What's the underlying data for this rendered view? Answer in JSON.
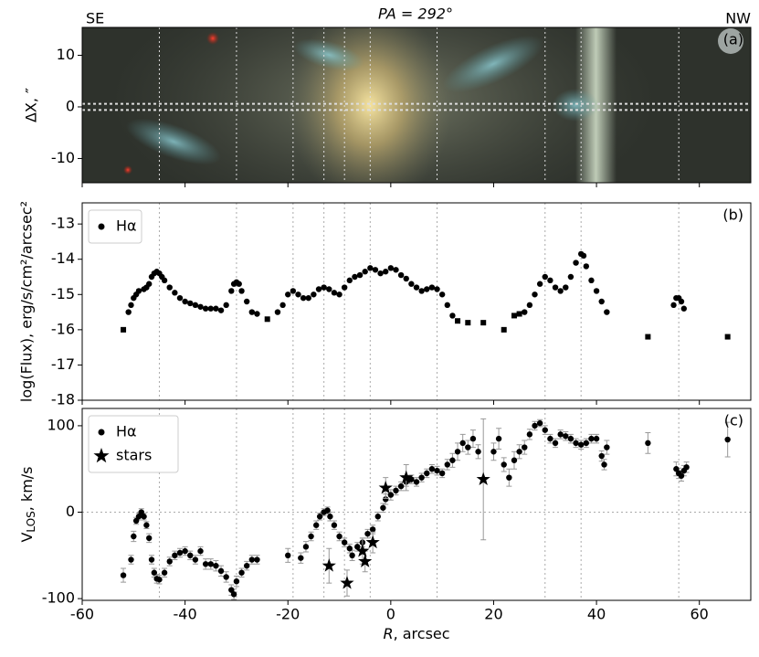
{
  "chart_data": [
    {
      "type": "image",
      "title": "PA = 292°",
      "label_left": "SE",
      "label_right": "NW",
      "panel_label": "(a)",
      "ylabel": "ΔX, ″",
      "ylim": [
        -14.7,
        15.4
      ],
      "yticks": [
        -10,
        0,
        10
      ],
      "hlines": [
        -0.6,
        0.6
      ],
      "vlines": [
        -45,
        -30,
        -19,
        -13,
        -9,
        -4,
        9,
        30,
        37,
        56
      ]
    },
    {
      "type": "scatter",
      "panel_label": "(b)",
      "ylabel": "log(Flux),  erg/s/cm²/arcsec²",
      "ylim": [
        -18,
        -12.4
      ],
      "yticks": [
        -18,
        -17,
        -16,
        -15,
        -14,
        -13
      ],
      "legend": "upper left",
      "series": [
        {
          "name": "Hα",
          "marker": "circle",
          "color": "#000000",
          "x": [
            -51,
            -50.5,
            -50,
            -49.5,
            -49,
            -48,
            -47.5,
            -47,
            -46.5,
            -46,
            -45.5,
            -45,
            -44.5,
            -44,
            -43,
            -42,
            -41,
            -40,
            -39,
            -38,
            -37,
            -36,
            -35,
            -34,
            -33,
            -32,
            -31,
            -30.5,
            -30,
            -29.5,
            -29,
            -28,
            -27,
            -26,
            -22,
            -21,
            -20,
            -19,
            -18,
            -17,
            -16,
            -15,
            -14,
            -13,
            -12,
            -11,
            -10,
            -9,
            -8,
            -7,
            -6,
            -5,
            -4,
            -3,
            -2,
            -1,
            0,
            1,
            2,
            3,
            4,
            5,
            6,
            7,
            8,
            9,
            10,
            11,
            12,
            26,
            27,
            28,
            29,
            30,
            31,
            32,
            33,
            34,
            35,
            36,
            37,
            37.5,
            38,
            39,
            40,
            41,
            42,
            55,
            55.5,
            56,
            56.5,
            57
          ],
          "values": [
            -15.5,
            -15.3,
            -15.1,
            -15.0,
            -14.9,
            -14.85,
            -14.8,
            -14.7,
            -14.5,
            -14.4,
            -14.35,
            -14.4,
            -14.5,
            -14.6,
            -14.8,
            -14.95,
            -15.1,
            -15.2,
            -15.25,
            -15.3,
            -15.35,
            -15.4,
            -15.4,
            -15.4,
            -15.45,
            -15.3,
            -14.9,
            -14.7,
            -14.65,
            -14.7,
            -14.9,
            -15.2,
            -15.5,
            -15.55,
            -15.5,
            -15.3,
            -15.0,
            -14.9,
            -15.0,
            -15.1,
            -15.1,
            -15.0,
            -14.85,
            -14.8,
            -14.85,
            -14.95,
            -15.0,
            -14.8,
            -14.6,
            -14.5,
            -14.45,
            -14.35,
            -14.25,
            -14.3,
            -14.4,
            -14.35,
            -14.25,
            -14.3,
            -14.45,
            -14.55,
            -14.7,
            -14.8,
            -14.9,
            -14.85,
            -14.8,
            -14.85,
            -15.0,
            -15.3,
            -15.6,
            -15.5,
            -15.3,
            -15.0,
            -14.7,
            -14.5,
            -14.6,
            -14.8,
            -14.9,
            -14.8,
            -14.5,
            -14.1,
            -13.85,
            -13.9,
            -14.2,
            -14.6,
            -14.9,
            -15.2,
            -15.5,
            -15.3,
            -15.1,
            -15.1,
            -15.2,
            -15.4
          ]
        },
        {
          "marker": "square",
          "color": "#000000",
          "x": [
            -52,
            -24,
            13,
            15,
            18,
            22,
            24,
            25,
            50,
            65.5
          ],
          "values": [
            -16.0,
            -15.7,
            -15.75,
            -15.8,
            -15.8,
            -16.0,
            -15.6,
            -15.55,
            -16.2,
            -16.2
          ]
        }
      ]
    },
    {
      "type": "scatter",
      "panel_label": "(c)",
      "ylabel": "V",
      "ylabel_sub": "LOS",
      "ylabel_unit": ", km/s",
      "xlabel": "R",
      "xlabel_unit": ", arcsec",
      "xlim": [
        -60,
        70
      ],
      "xticks": [
        -60,
        -40,
        -20,
        0,
        20,
        40,
        60
      ],
      "ylim": [
        -102,
        120
      ],
      "yticks": [
        -100,
        0,
        100
      ],
      "hlines": [
        0
      ],
      "legend": "upper left",
      "series": [
        {
          "name": "Hα",
          "marker": "circle",
          "color": "#000000",
          "x": [
            -52,
            -50.5,
            -50,
            -49.5,
            -49,
            -48.5,
            -48,
            -47.5,
            -47,
            -46.5,
            -46,
            -45.5,
            -45,
            -44,
            -43,
            -42,
            -41,
            -40,
            -39,
            -38,
            -37,
            -36,
            -35,
            -34,
            -33,
            -32,
            -31,
            -30.5,
            -30,
            -29,
            -28,
            -27,
            -26,
            -20,
            -17.5,
            -16.5,
            -15.5,
            -14.5,
            -13.8,
            -13,
            -12.3,
            -11.8,
            -11,
            -10,
            -9,
            -8,
            -7.5,
            -6.5,
            -5.5,
            -4.5,
            -3.5,
            -2.5,
            -1.5,
            -1,
            0,
            1,
            2,
            3,
            4,
            5,
            6,
            7,
            8,
            9,
            10,
            11,
            12,
            13,
            14,
            15,
            16,
            17,
            20,
            21,
            22,
            23,
            24,
            25,
            26,
            27,
            28,
            29,
            30,
            31,
            32,
            33,
            34,
            35,
            36,
            37,
            38,
            39,
            40,
            41,
            41.5,
            42,
            50,
            55.5,
            56,
            56.5,
            57,
            57.5,
            65.5
          ],
          "values": [
            -73,
            -55,
            -28,
            -10,
            -5,
            0,
            -5,
            -15,
            -30,
            -55,
            -70,
            -77,
            -78,
            -70,
            -57,
            -50,
            -47,
            -45,
            -50,
            -55,
            -45,
            -60,
            -60,
            -62,
            -68,
            -75,
            -90,
            -95,
            -80,
            -70,
            -62,
            -55,
            -55,
            -50,
            -53,
            -40,
            -28,
            -15,
            -5,
            0,
            2,
            -5,
            -15,
            -28,
            -35,
            -42,
            -50,
            -40,
            -35,
            -25,
            -20,
            -5,
            5,
            15,
            20,
            25,
            30,
            35,
            38,
            35,
            40,
            45,
            50,
            48,
            45,
            55,
            60,
            70,
            80,
            75,
            85,
            70,
            70,
            85,
            55,
            40,
            60,
            70,
            75,
            90,
            100,
            103,
            95,
            85,
            80,
            90,
            88,
            85,
            80,
            78,
            80,
            85,
            85,
            65,
            55,
            75,
            80,
            50,
            45,
            42,
            48,
            52,
            84
          ],
          "errors": [
            8,
            5,
            6,
            4,
            4,
            4,
            4,
            4,
            5,
            5,
            5,
            5,
            5,
            5,
            5,
            5,
            5,
            5,
            5,
            5,
            5,
            6,
            6,
            6,
            6,
            6,
            6,
            6,
            6,
            5,
            5,
            5,
            5,
            8,
            6,
            6,
            5,
            5,
            4,
            4,
            4,
            5,
            5,
            5,
            5,
            5,
            6,
            5,
            5,
            5,
            5,
            5,
            5,
            6,
            6,
            5,
            5,
            5,
            5,
            5,
            5,
            5,
            5,
            5,
            5,
            6,
            8,
            10,
            10,
            8,
            10,
            8,
            10,
            12,
            8,
            10,
            10,
            8,
            8,
            6,
            5,
            4,
            5,
            5,
            5,
            5,
            5,
            5,
            5,
            5,
            5,
            5,
            5,
            6,
            6,
            8,
            12,
            8,
            6,
            6,
            6,
            6,
            20
          ]
        },
        {
          "name": "stars",
          "marker": "star",
          "color": "#000000",
          "x": [
            -12,
            -8.5,
            -5.5,
            -5,
            -3.5,
            -1,
            3,
            18
          ],
          "values": [
            -62,
            -82,
            -45,
            -57,
            -35,
            28,
            40,
            38
          ],
          "errors": [
            20,
            15,
            15,
            12,
            12,
            12,
            15,
            70
          ]
        }
      ]
    }
  ]
}
